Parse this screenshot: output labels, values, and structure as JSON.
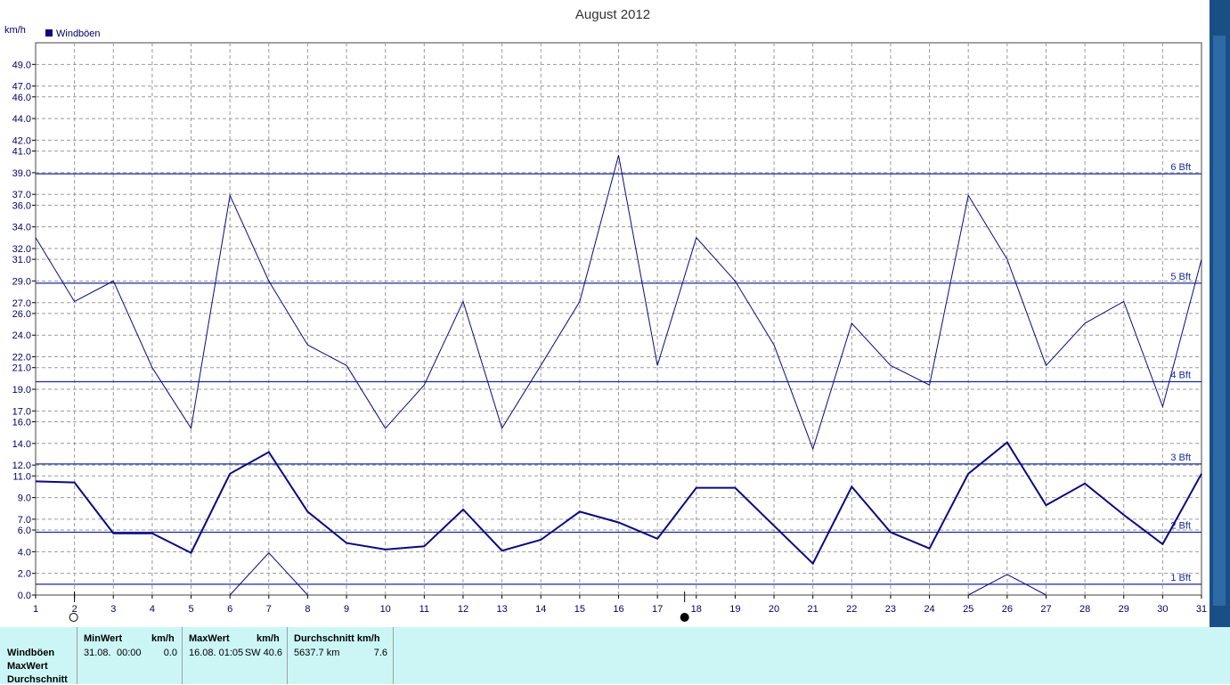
{
  "chart_data": {
    "type": "line",
    "title": "August 2012",
    "ylabel": "km/h",
    "legend": [
      "Windböen"
    ],
    "legend_position": "top-left",
    "x": [
      1,
      2,
      3,
      4,
      5,
      6,
      7,
      8,
      9,
      10,
      11,
      12,
      13,
      14,
      15,
      16,
      17,
      18,
      19,
      20,
      21,
      22,
      23,
      24,
      25,
      26,
      27,
      28,
      29,
      30,
      31
    ],
    "ylim": [
      0,
      51
    ],
    "yticks": [
      "0.0",
      "2.0",
      "4.0",
      "6.0",
      "7.0",
      "9.0",
      "11.0",
      "12.0",
      "14.0",
      "16.0",
      "17.0",
      "19.0",
      "21.0",
      "22.0",
      "24.0",
      "26.0",
      "27.0",
      "29.0",
      "31.0",
      "32.0",
      "34.0",
      "36.0",
      "37.0",
      "39.0",
      "41.0",
      "42.0",
      "44.0",
      "46.0",
      "47.0",
      "49.0"
    ],
    "grid": true,
    "series": [
      {
        "name": "Windböen",
        "role": "max",
        "width": 1,
        "values": [
          33,
          27.1,
          29,
          21,
          15.4,
          36.9,
          29,
          23.1,
          21.2,
          15.4,
          19.4,
          27.1,
          15.4,
          21.2,
          27.1,
          40.6,
          21.2,
          33,
          29,
          23.1,
          13.5,
          25.1,
          21.2,
          19.4,
          36.9,
          31,
          21.2,
          25.1,
          27.1,
          17.4,
          31
        ]
      },
      {
        "role": "avg",
        "width": 2,
        "values": [
          10.5,
          10.4,
          5.7,
          5.7,
          3.9,
          11.2,
          13.2,
          7.7,
          4.8,
          4.2,
          4.5,
          7.9,
          4.1,
          5.1,
          7.7,
          6.7,
          5.2,
          9.9,
          9.9,
          6.4,
          2.9,
          10,
          5.8,
          4.3,
          11.2,
          14.1,
          8.3,
          10.3,
          7.4,
          4.7,
          11.2
        ]
      },
      {
        "role": "min",
        "width": 1,
        "values": [
          null,
          null,
          null,
          null,
          null,
          0,
          3.9,
          0,
          null,
          null,
          null,
          null,
          null,
          null,
          null,
          null,
          null,
          null,
          null,
          null,
          null,
          null,
          null,
          null,
          0,
          1.9,
          0,
          null,
          null,
          null,
          null
        ]
      }
    ],
    "reference_lines": [
      {
        "label": "6 Bft",
        "value": 38.9
      },
      {
        "label": "5 Bft",
        "value": 28.8
      },
      {
        "label": "4 Bft",
        "value": 19.7
      },
      {
        "label": "3 Bft",
        "value": 12.1
      },
      {
        "label": "2 Bft",
        "value": 5.8
      },
      {
        "label": "1 Bft",
        "value": 1.0
      }
    ],
    "markers": [
      {
        "symbol": "full-moon",
        "day": 2
      },
      {
        "symbol": "new-moon",
        "day": 17.7
      }
    ],
    "colors": {
      "line": "#0a0a80",
      "grid": "#9a9a9a",
      "ref": "#1a2a9a",
      "text": "#000066"
    }
  },
  "stats": {
    "row_labels": [
      "Windböen",
      "MaxWert",
      "Durchschnitt"
    ],
    "min": {
      "header": "MinWert",
      "unit": "km/h",
      "date": "31.08.",
      "time": "00:00",
      "value": "0.0"
    },
    "max": {
      "header": "MaxWert",
      "unit": "km/h",
      "datetime": "16.08.  01:05",
      "dir_value": "SW 40.6"
    },
    "avg": {
      "header": "Durchschnitt km/h",
      "distance": "5637.7 km",
      "value": "7.6"
    }
  }
}
